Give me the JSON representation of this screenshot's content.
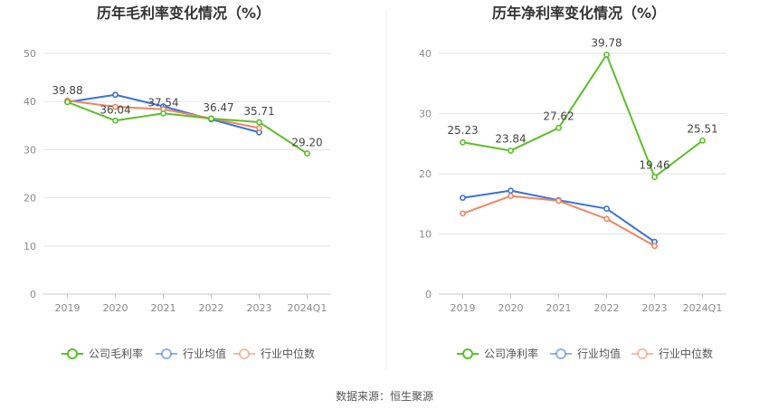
{
  "source_text": "数据来源：恒生聚源",
  "colors": {
    "company": "#5cbf2a",
    "industry_avg": "#3a72d9",
    "industry_median": "#f0865f",
    "grid": "#e6e6e6",
    "axis": "#c8c8c8"
  },
  "chart_data": [
    {
      "type": "line",
      "title": "历年毛利率变化情况（%）",
      "categories": [
        "2019",
        "2020",
        "2021",
        "2022",
        "2023",
        "2024Q1"
      ],
      "ylim": [
        0,
        50
      ],
      "yticks": [
        0,
        10,
        20,
        30,
        40,
        50
      ],
      "grid": true,
      "legend_position": "bottom",
      "series": [
        {
          "name": "公司毛利率",
          "key": "company",
          "values": [
            39.88,
            36.04,
            37.54,
            36.47,
            35.71,
            29.2
          ],
          "labels": [
            "39.88",
            "36.04",
            "37.54",
            "36.47",
            "35.71",
            "29.20"
          ]
        },
        {
          "name": "行业均值",
          "key": "industry_avg",
          "values": [
            39.9,
            41.4,
            39.0,
            36.3,
            33.6,
            null
          ]
        },
        {
          "name": "行业中位数",
          "key": "industry_median",
          "values": [
            40.2,
            38.9,
            38.4,
            36.5,
            34.5,
            null
          ]
        }
      ]
    },
    {
      "type": "line",
      "title": "历年净利率变化情况（%）",
      "categories": [
        "2019",
        "2020",
        "2021",
        "2022",
        "2023",
        "2024Q1"
      ],
      "ylim": [
        0,
        40
      ],
      "yticks": [
        0,
        10,
        20,
        30,
        40
      ],
      "grid": true,
      "legend_position": "bottom",
      "series": [
        {
          "name": "公司净利率",
          "key": "company",
          "values": [
            25.23,
            23.84,
            27.62,
            39.78,
            19.46,
            25.51
          ],
          "labels": [
            "25.23",
            "23.84",
            "27.62",
            "39.78",
            "19.46",
            "25.51"
          ]
        },
        {
          "name": "行业均值",
          "key": "industry_avg",
          "values": [
            16.0,
            17.2,
            15.6,
            14.2,
            8.7,
            null
          ]
        },
        {
          "name": "行业中位数",
          "key": "industry_median",
          "values": [
            13.4,
            16.3,
            15.5,
            12.5,
            8.0,
            null
          ]
        }
      ]
    }
  ]
}
